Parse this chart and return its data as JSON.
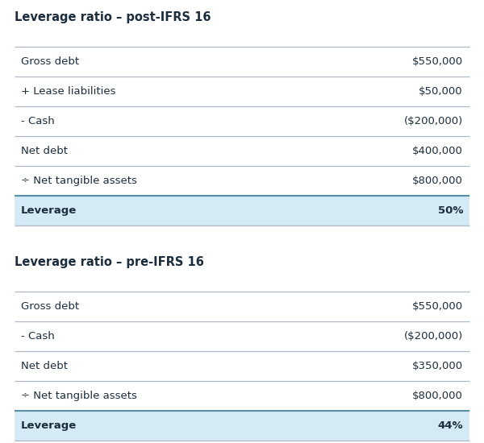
{
  "background_color": "#ffffff",
  "text_color": "#1c2d3e",
  "highlight_bg": "#d4eaf5",
  "line_color": "#adb8c2",
  "highlight_line_color": "#5a8fa8",
  "title_color": "#1c2d3e",
  "section1_title": "Leverage ratio – post-IFRS 16",
  "section1_rows": [
    {
      "label": "Gross debt",
      "value": "$550,000",
      "bold": false,
      "highlight": false
    },
    {
      "label": "+ Lease liabilities",
      "value": "$50,000",
      "bold": false,
      "highlight": false
    },
    {
      "label": "- Cash",
      "value": "($200,000)",
      "bold": false,
      "highlight": false
    },
    {
      "label": "Net debt",
      "value": "$400,000",
      "bold": false,
      "highlight": false
    },
    {
      "label": "÷ Net tangible assets",
      "value": "$800,000",
      "bold": false,
      "highlight": false
    },
    {
      "label": "Leverage",
      "value": "50%",
      "bold": true,
      "highlight": true
    }
  ],
  "section2_title": "Leverage ratio – pre-IFRS 16",
  "section2_rows": [
    {
      "label": "Gross debt",
      "value": "$550,000",
      "bold": false,
      "highlight": false
    },
    {
      "label": "- Cash",
      "value": "($200,000)",
      "bold": false,
      "highlight": false
    },
    {
      "label": "Net debt",
      "value": "$350,000",
      "bold": false,
      "highlight": false
    },
    {
      "label": "÷ Net tangible assets",
      "value": "$800,000",
      "bold": false,
      "highlight": false
    },
    {
      "label": "Leverage",
      "value": "44%",
      "bold": true,
      "highlight": true
    }
  ],
  "font_size_title": 10.5,
  "font_size_row": 9.5,
  "fig_width": 6.0,
  "fig_height": 5.5,
  "dpi": 100
}
